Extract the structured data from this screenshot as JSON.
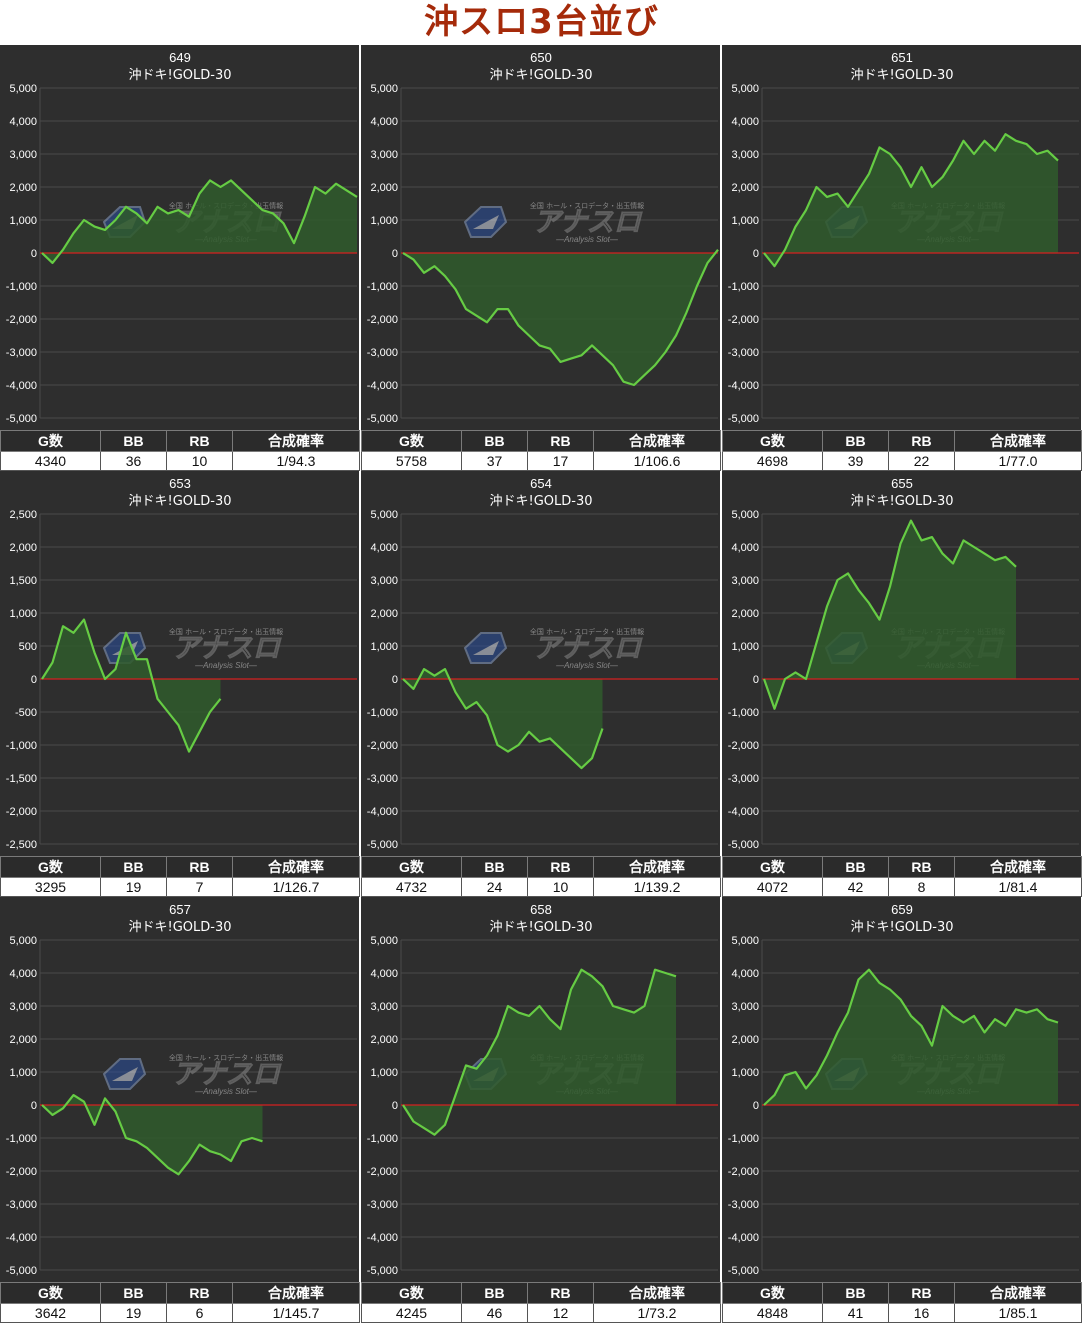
{
  "page_title": "沖スロ3台並び",
  "colors": {
    "panel_bg": "#2e2e2e",
    "line": "#66cc44",
    "fill": "#2f5a2c",
    "zero_line": "#d42020",
    "grid": "#4a4a4a",
    "title": "#a52a0a"
  },
  "watermark": {
    "brand": "アナスロ",
    "sub": "—Analysis Slot—",
    "tag": "全国 ホール・スロデータ・出玉情報"
  },
  "stat_headers": [
    "G数",
    "BB",
    "RB",
    "合成確率"
  ],
  "machines": [
    {
      "number": "649",
      "model": "沖ドキ!GOLD-30",
      "stats": [
        "4340",
        "36",
        "10",
        "1/94.3"
      ],
      "chart_data": {
        "type": "area",
        "ylim": [
          -5000,
          5000
        ],
        "yticks": [
          "5,000",
          "4,000",
          "3,000",
          "2,000",
          "1,000",
          "0",
          "-1,000",
          "-2,000",
          "-3,000",
          "-4,000",
          "-5,000"
        ],
        "values": [
          0,
          -300,
          100,
          600,
          1000,
          800,
          700,
          1000,
          1400,
          1200,
          900,
          1400,
          1200,
          1300,
          1100,
          1800,
          2200,
          2000,
          2200,
          1900,
          1600,
          1300,
          1200,
          900,
          300,
          1100,
          2000,
          1800,
          2100,
          1900,
          1700
        ]
      }
    },
    {
      "number": "650",
      "model": "沖ドキ!GOLD-30",
      "stats": [
        "5758",
        "37",
        "17",
        "1/106.6"
      ],
      "chart_data": {
        "type": "area",
        "ylim": [
          -5000,
          5000
        ],
        "yticks": [
          "5,000",
          "4,000",
          "3,000",
          "2,000",
          "1,000",
          "0",
          "-1,000",
          "-2,000",
          "-3,000",
          "-4,000",
          "-5,000"
        ],
        "values": [
          0,
          -200,
          -600,
          -400,
          -700,
          -1100,
          -1700,
          -1900,
          -2100,
          -1700,
          -1700,
          -2200,
          -2500,
          -2800,
          -2900,
          -3300,
          -3200,
          -3100,
          -2800,
          -3100,
          -3400,
          -3900,
          -4000,
          -3700,
          -3400,
          -3000,
          -2500,
          -1800,
          -1000,
          -300,
          100
        ]
      }
    },
    {
      "number": "651",
      "model": "沖ドキ!GOLD-30",
      "stats": [
        "4698",
        "39",
        "22",
        "1/77.0"
      ],
      "chart_data": {
        "type": "area",
        "ylim": [
          -5000,
          5000
        ],
        "yticks": [
          "5,000",
          "4,000",
          "3,000",
          "2,000",
          "1,000",
          "0",
          "-1,000",
          "-2,000",
          "-3,000",
          "-4,000",
          "-5,000"
        ],
        "values": [
          0,
          -400,
          100,
          800,
          1300,
          2000,
          1700,
          1800,
          1400,
          1900,
          2400,
          3200,
          3000,
          2600,
          2000,
          2600,
          2000,
          2300,
          2800,
          3400,
          3000,
          3400,
          3100,
          3600,
          3400,
          3300,
          3000,
          3100,
          2800
        ]
      }
    },
    {
      "number": "653",
      "model": "沖ドキ!GOLD-30",
      "stats": [
        "3295",
        "19",
        "7",
        "1/126.7"
      ],
      "chart_data": {
        "type": "area",
        "ylim": [
          -2500,
          2500
        ],
        "yticks": [
          "2,500",
          "2,000",
          "1,500",
          "1,000",
          "500",
          "0",
          "-500",
          "-1,000",
          "-1,500",
          "-2,000",
          "-2,500"
        ],
        "values": [
          0,
          250,
          800,
          700,
          900,
          400,
          0,
          150,
          700,
          300,
          300,
          -300,
          -500,
          -700,
          -1100,
          -800,
          -500,
          -300
        ]
      }
    },
    {
      "number": "654",
      "model": "沖ドキ!GOLD-30",
      "stats": [
        "4732",
        "24",
        "10",
        "1/139.2"
      ],
      "chart_data": {
        "type": "area",
        "ylim": [
          -5000,
          5000
        ],
        "yticks": [
          "5,000",
          "4,000",
          "3,000",
          "2,000",
          "1,000",
          "0",
          "-1,000",
          "-2,000",
          "-3,000",
          "-4,000",
          "-5,000"
        ],
        "values": [
          0,
          -300,
          300,
          100,
          300,
          -400,
          -900,
          -700,
          -1100,
          -2000,
          -2200,
          -2000,
          -1600,
          -1900,
          -1800,
          -2100,
          -2400,
          -2700,
          -2400,
          -1500
        ]
      }
    },
    {
      "number": "655",
      "model": "沖ドキ!GOLD-30",
      "stats": [
        "4072",
        "42",
        "8",
        "1/81.4"
      ],
      "chart_data": {
        "type": "area",
        "ylim": [
          -5000,
          5000
        ],
        "yticks": [
          "5,000",
          "4,000",
          "3,000",
          "2,000",
          "1,000",
          "0",
          "-1,000",
          "-2,000",
          "-3,000",
          "-4,000",
          "-5,000"
        ],
        "values": [
          0,
          -900,
          0,
          200,
          0,
          1100,
          2200,
          3000,
          3200,
          2700,
          2300,
          1800,
          2800,
          4100,
          4800,
          4200,
          4300,
          3800,
          3500,
          4200,
          4000,
          3800,
          3600,
          3700,
          3400
        ]
      }
    },
    {
      "number": "657",
      "model": "沖ドキ!GOLD-30",
      "stats": [
        "3642",
        "19",
        "6",
        "1/145.7"
      ],
      "chart_data": {
        "type": "area",
        "ylim": [
          -5000,
          5000
        ],
        "yticks": [
          "5,000",
          "4,000",
          "3,000",
          "2,000",
          "1,000",
          "0",
          "-1,000",
          "-2,000",
          "-3,000",
          "-4,000",
          "-5,000"
        ],
        "values": [
          0,
          -300,
          -100,
          300,
          100,
          -600,
          200,
          -200,
          -1000,
          -1100,
          -1300,
          -1600,
          -1900,
          -2100,
          -1700,
          -1200,
          -1400,
          -1500,
          -1700,
          -1100,
          -1000,
          -1100
        ]
      }
    },
    {
      "number": "658",
      "model": "沖ドキ!GOLD-30",
      "stats": [
        "4245",
        "46",
        "12",
        "1/73.2"
      ],
      "chart_data": {
        "type": "area",
        "ylim": [
          -5000,
          5000
        ],
        "yticks": [
          "5,000",
          "4,000",
          "3,000",
          "2,000",
          "1,000",
          "0",
          "-1,000",
          "-2,000",
          "-3,000",
          "-4,000",
          "-5,000"
        ],
        "values": [
          0,
          -500,
          -700,
          -900,
          -600,
          300,
          1200,
          1100,
          1500,
          2100,
          3000,
          2800,
          2700,
          3000,
          2600,
          2300,
          3500,
          4100,
          3900,
          3600,
          3000,
          2900,
          2800,
          3000,
          4100,
          4000,
          3900
        ]
      }
    },
    {
      "number": "659",
      "model": "沖ドキ!GOLD-30",
      "stats": [
        "4848",
        "41",
        "16",
        "1/85.1"
      ],
      "chart_data": {
        "type": "area",
        "ylim": [
          -5000,
          5000
        ],
        "yticks": [
          "5,000",
          "4,000",
          "3,000",
          "2,000",
          "1,000",
          "0",
          "-1,000",
          "-2,000",
          "-3,000",
          "-4,000",
          "-5,000"
        ],
        "values": [
          0,
          300,
          900,
          1000,
          500,
          900,
          1500,
          2200,
          2800,
          3800,
          4100,
          3700,
          3500,
          3200,
          2700,
          2400,
          1800,
          3000,
          2700,
          2500,
          2700,
          2200,
          2600,
          2400,
          2900,
          2800,
          2900,
          2600,
          2500
        ]
      }
    }
  ]
}
